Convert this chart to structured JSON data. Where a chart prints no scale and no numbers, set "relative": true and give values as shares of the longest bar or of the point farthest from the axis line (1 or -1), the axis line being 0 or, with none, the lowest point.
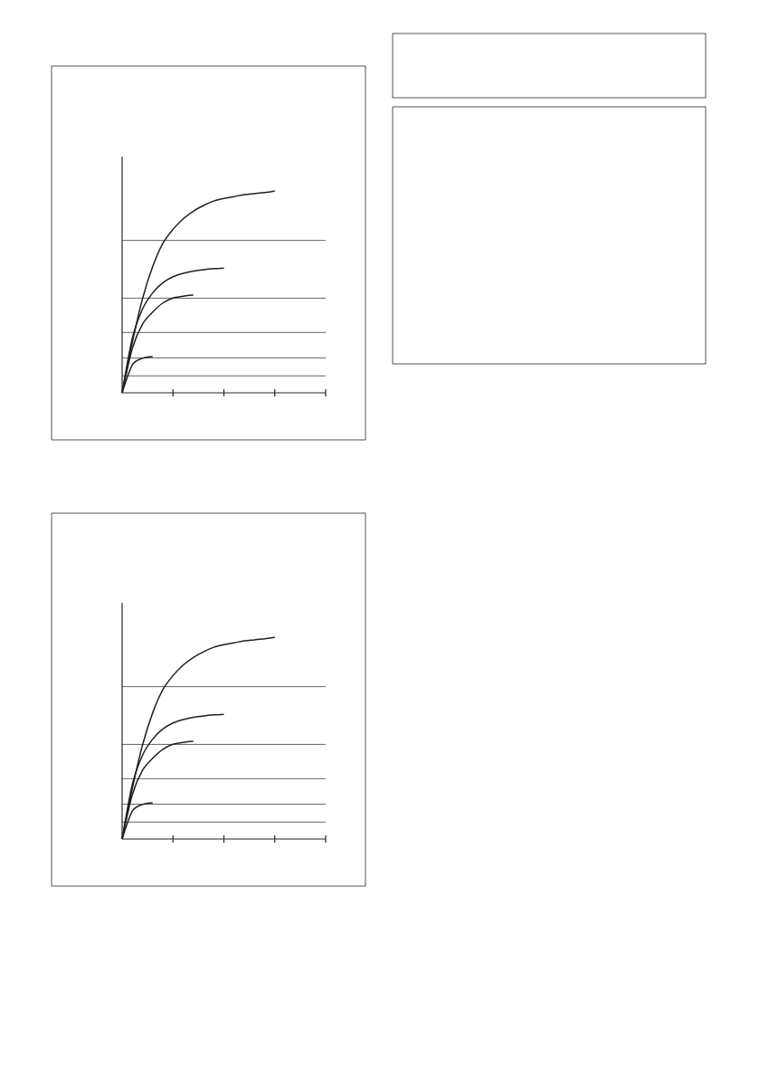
{
  "chart_data": [
    {
      "type": "line",
      "relative": true,
      "categories": [
        null,
        null,
        null,
        null,
        null,
        null,
        null,
        null,
        null,
        null,
        null,
        null,
        null,
        null,
        null,
        null,
        null,
        null,
        null,
        null,
        null
      ],
      "series": [
        {
          "color": "#231f20",
          "values": [
            0,
            0.25,
            0.465,
            0.625,
            0.74,
            0.81,
            0.862,
            0.9,
            0.928,
            0.95,
            0.963,
            0.972,
            0.982,
            0.987,
            0.992,
            1,
            null,
            null,
            null,
            null,
            null
          ]
        },
        {
          "color": "#231f20",
          "values": [
            0,
            0.27,
            0.415,
            0.495,
            0.545,
            0.575,
            0.592,
            0.603,
            0.61,
            0.615,
            0.618,
            null,
            null,
            null,
            null,
            null,
            null,
            null,
            null,
            null,
            null
          ]
        },
        {
          "color": "#231f20",
          "values": [
            0,
            0.22,
            0.34,
            0.4,
            0.445,
            0.47,
            0.479,
            0.484,
            null,
            null,
            null,
            null,
            null,
            null,
            null,
            null,
            null,
            null,
            null,
            null,
            null
          ]
        },
        {
          "color": "#231f20",
          "values": [
            0,
            0.138,
            0.171,
            0.179,
            null,
            null,
            null,
            null,
            null,
            null,
            null,
            null,
            null,
            null,
            null,
            null,
            null,
            null,
            null,
            null,
            null
          ]
        }
      ],
      "ref_lines": [
        {
          "axis": "y",
          "value": 0.755,
          "color": "#231f20"
        },
        {
          "axis": "y",
          "value": 0.469,
          "color": "#231f20"
        },
        {
          "axis": "y",
          "value": 0.299,
          "color": "#231f20"
        },
        {
          "axis": "y",
          "value": 0.173,
          "color": "#231f20"
        },
        {
          "axis": "y",
          "value": 0.084,
          "color": "#231f20"
        }
      ]
    },
    {
      "type": "line",
      "relative": true,
      "categories": [
        null,
        null,
        null,
        null,
        null,
        null,
        null,
        null,
        null,
        null,
        null,
        null,
        null,
        null,
        null,
        null,
        null,
        null,
        null,
        null,
        null
      ],
      "series": [
        {
          "color": "#231f20",
          "values": [
            0,
            0.25,
            0.465,
            0.625,
            0.74,
            0.81,
            0.862,
            0.9,
            0.928,
            0.95,
            0.963,
            0.972,
            0.982,
            0.987,
            0.992,
            1,
            null,
            null,
            null,
            null,
            null
          ]
        },
        {
          "color": "#231f20",
          "values": [
            0,
            0.27,
            0.415,
            0.495,
            0.545,
            0.575,
            0.592,
            0.603,
            0.61,
            0.615,
            0.618,
            null,
            null,
            null,
            null,
            null,
            null,
            null,
            null,
            null,
            null
          ]
        },
        {
          "color": "#231f20",
          "values": [
            0,
            0.22,
            0.34,
            0.4,
            0.445,
            0.47,
            0.479,
            0.484,
            null,
            null,
            null,
            null,
            null,
            null,
            null,
            null,
            null,
            null,
            null,
            null,
            null
          ]
        },
        {
          "color": "#231f20",
          "values": [
            0,
            0.138,
            0.171,
            0.179,
            null,
            null,
            null,
            null,
            null,
            null,
            null,
            null,
            null,
            null,
            null,
            null,
            null,
            null,
            null,
            null,
            null
          ]
        }
      ],
      "ref_lines": [
        {
          "axis": "y",
          "value": 0.755,
          "color": "#231f20"
        },
        {
          "axis": "y",
          "value": 0.469,
          "color": "#231f20"
        },
        {
          "axis": "y",
          "value": 0.299,
          "color": "#231f20"
        },
        {
          "axis": "y",
          "value": 0.173,
          "color": "#231f20"
        },
        {
          "axis": "y",
          "value": 0.084,
          "color": "#231f20"
        }
      ]
    }
  ]
}
